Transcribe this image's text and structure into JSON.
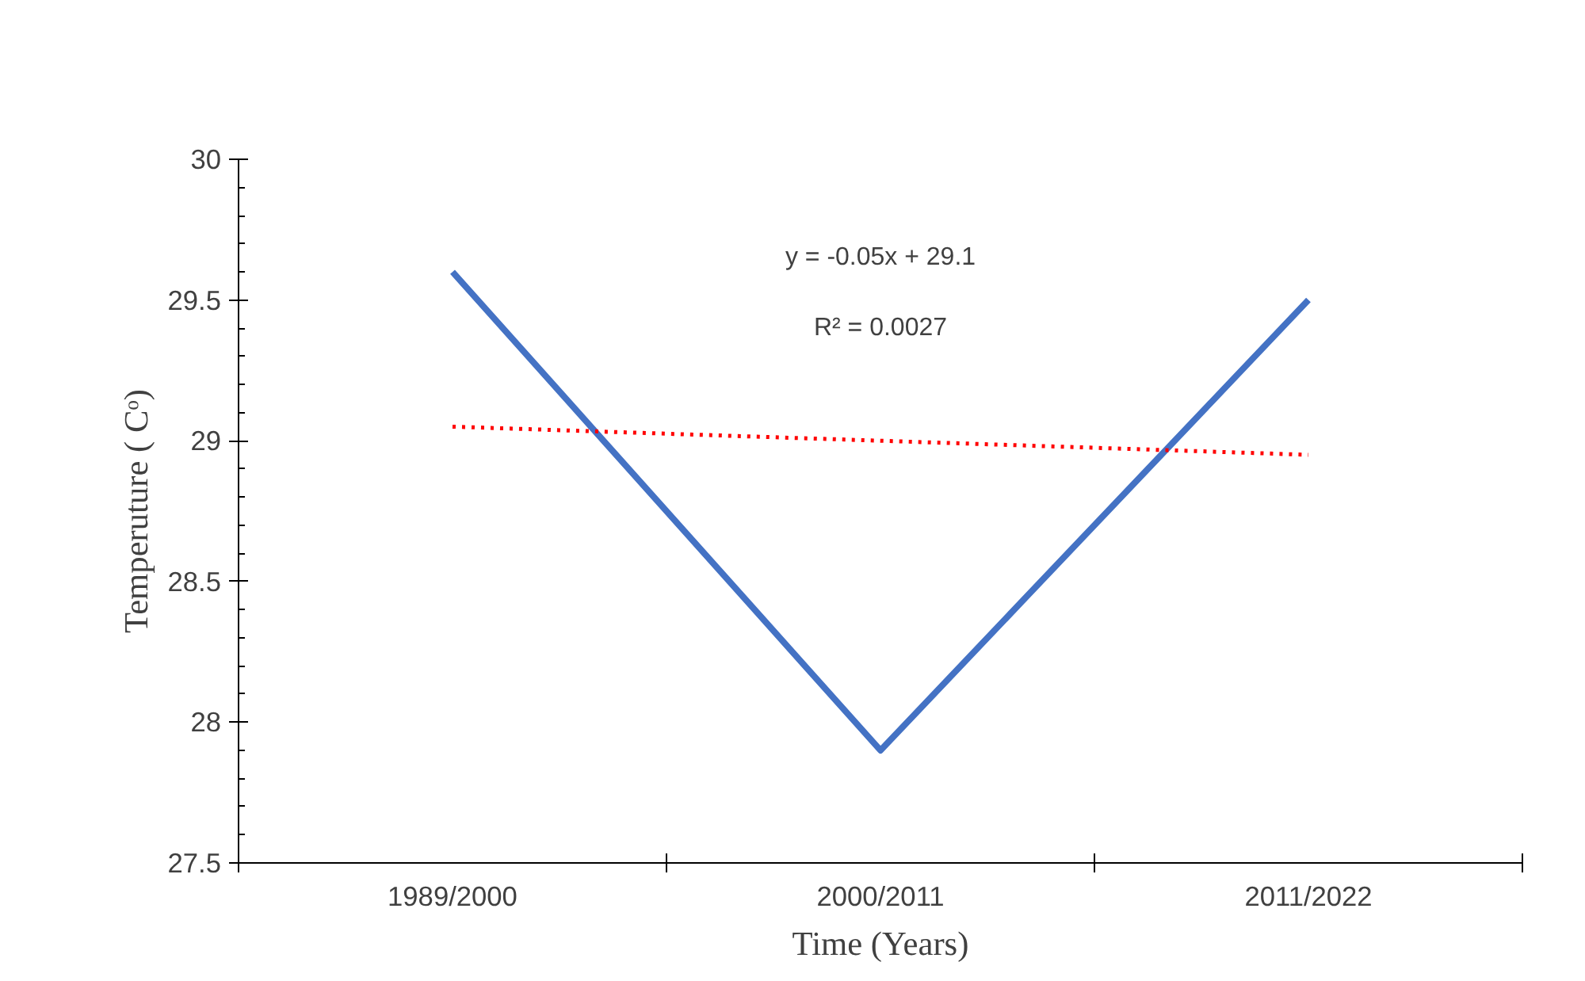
{
  "chart_data": {
    "type": "line",
    "xlabel": "Time (Years)",
    "ylabel": "Temperuture ( Cᵒ)",
    "categories": [
      "1989/2000",
      "2000/2011",
      "2011/2022"
    ],
    "series": [
      {
        "color": "#4472c4",
        "values": [
          29.6,
          27.9,
          29.5
        ]
      },
      {
        "type": "line",
        "color": "#ff0000",
        "line_style": "dotted",
        "values": [
          29.05,
          29.0,
          28.95
        ]
      }
    ],
    "ylim": [
      27.5,
      30
    ],
    "yticks": [
      27.5,
      28,
      28.5,
      29,
      29.5,
      30
    ],
    "annotations": [
      "y = -0.05x + 29.1",
      "R² = 0.0027"
    ],
    "grid": false,
    "marker": "none"
  }
}
